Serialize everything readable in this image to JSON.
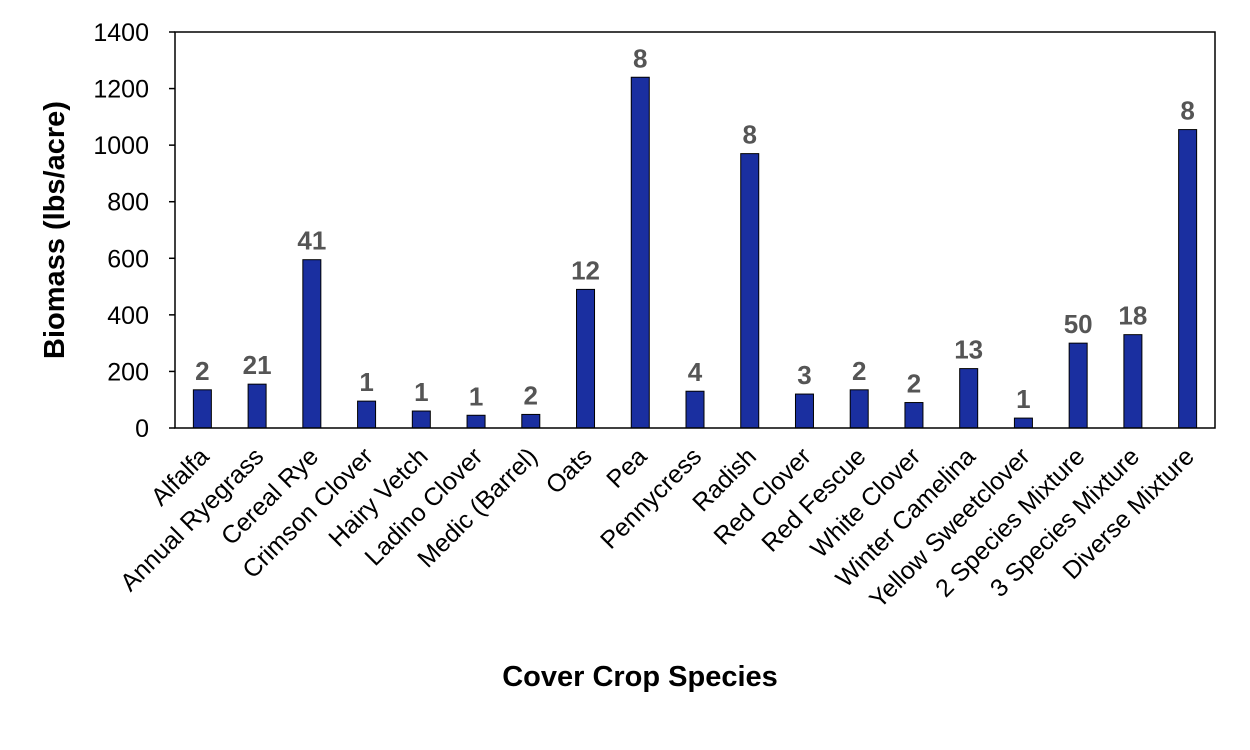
{
  "chart_data": {
    "type": "bar",
    "title": "",
    "xlabel": "Cover Crop Species",
    "ylabel": "Biomass (lbs/acre)",
    "ylim": [
      0,
      1400
    ],
    "yticks": [
      0,
      200,
      400,
      600,
      800,
      1000,
      1200,
      1400
    ],
    "grid": false,
    "legend": "none",
    "bar_color": "#1a2fa0",
    "categories": [
      "Alfalfa",
      "Annual Ryegrass",
      "Cereal Rye",
      "Crimson Clover",
      "Hairy Vetch",
      "Ladino Clover",
      "Medic (Barrel)",
      "Oats",
      "Pea",
      "Pennycress",
      "Radish",
      "Red Clover",
      "Red Fescue",
      "White Clover",
      "Winter Camelina",
      "Yellow Sweetclover",
      "2 Species Mixture",
      "3 Species Mixture",
      "Diverse Mixture"
    ],
    "values": [
      135,
      155,
      595,
      95,
      60,
      45,
      48,
      490,
      1240,
      130,
      970,
      120,
      135,
      90,
      210,
      35,
      300,
      330,
      1055
    ],
    "data_labels": [
      "2",
      "21",
      "41",
      "1",
      "1",
      "1",
      "2",
      "12",
      "8",
      "4",
      "8",
      "3",
      "2",
      "2",
      "13",
      "1",
      "50",
      "18",
      "8"
    ]
  }
}
